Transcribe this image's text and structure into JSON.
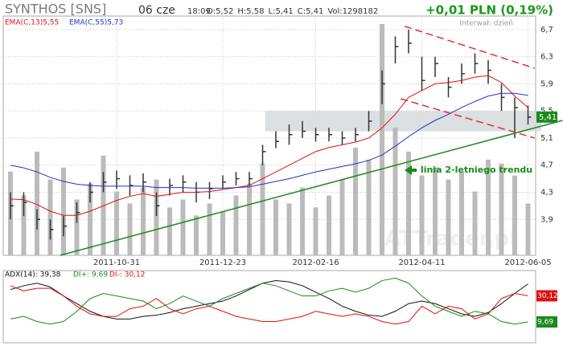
{
  "chart_data": [
    {
      "type": "ohlc",
      "title": "SYNTHOS [SNS]",
      "date": "06 cze",
      "time": "18:09",
      "quote": [
        "O:5,52",
        "H:5,58",
        "L:5,41",
        "C:5,41",
        "Vol:1298182"
      ],
      "change": "+0,01 PLN (0,19%)",
      "interval": "Interwał: dzień",
      "watermark": "ATTrader.pl",
      "categories": [
        null,
        null,
        null,
        null,
        null,
        null,
        null,
        null,
        "2011-10-31",
        null,
        null,
        null,
        null,
        null,
        null,
        null,
        "2011-12-23",
        null,
        null,
        null,
        null,
        null,
        null,
        "2012-02-16",
        null,
        null,
        null,
        null,
        null,
        null,
        null,
        "2012-04-11",
        null,
        null,
        null,
        null,
        null,
        null,
        null,
        "2012-06-05"
      ],
      "high": [
        4.3,
        4.3,
        4.05,
        3.9,
        3.95,
        4.15,
        4.45,
        4.6,
        4.62,
        4.55,
        4.58,
        4.3,
        4.5,
        4.55,
        4.45,
        4.45,
        4.55,
        4.6,
        4.6,
        5.0,
        5.2,
        5.3,
        5.35,
        5.25,
        5.25,
        5.2,
        5.25,
        5.5,
        6.1,
        6.6,
        6.7,
        6.3,
        6.3,
        6.0,
        6.2,
        6.35,
        6.25,
        5.9,
        5.7,
        5.58
      ],
      "low": [
        3.9,
        3.95,
        3.75,
        3.6,
        3.65,
        3.85,
        4.15,
        4.3,
        4.35,
        4.25,
        4.3,
        3.95,
        4.25,
        4.3,
        4.15,
        4.2,
        4.35,
        4.4,
        4.4,
        4.7,
        4.95,
        5.0,
        5.1,
        5.05,
        5.05,
        5.0,
        5.05,
        5.2,
        5.6,
        6.2,
        6.35,
        5.8,
        6.0,
        5.7,
        5.9,
        6.05,
        5.9,
        5.5,
        5.1,
        5.3
      ],
      "close": [
        4.1,
        4.15,
        3.9,
        3.75,
        3.8,
        4.0,
        4.3,
        4.45,
        4.5,
        4.4,
        4.45,
        4.1,
        4.4,
        4.45,
        4.3,
        4.35,
        4.45,
        4.5,
        4.5,
        4.9,
        5.05,
        5.15,
        5.2,
        5.15,
        5.15,
        5.1,
        5.15,
        5.35,
        5.9,
        6.45,
        6.5,
        5.95,
        6.2,
        5.85,
        6.05,
        6.2,
        6.1,
        5.7,
        5.55,
        5.41
      ],
      "bar_color": "#333333",
      "series": [
        {
          "name": "EMA(C,13)5,55",
          "color": "#e01010",
          "values": [
            4.2,
            4.19,
            4.12,
            4.02,
            3.96,
            3.96,
            4.02,
            4.1,
            4.18,
            4.24,
            4.28,
            4.24,
            4.27,
            4.3,
            4.3,
            4.31,
            4.34,
            4.37,
            4.4,
            4.5,
            4.6,
            4.7,
            4.8,
            4.9,
            4.96,
            5.0,
            5.04,
            5.1,
            5.25,
            5.45,
            5.7,
            5.8,
            5.9,
            5.92,
            5.95,
            6.0,
            6.02,
            5.92,
            5.72,
            5.55
          ]
        },
        {
          "name": "EMA(C,55)5,73",
          "color": "#2233cc",
          "values": [
            4.7,
            4.66,
            4.6,
            4.52,
            4.46,
            4.42,
            4.4,
            4.39,
            4.39,
            4.39,
            4.39,
            4.37,
            4.37,
            4.37,
            4.36,
            4.36,
            4.36,
            4.37,
            4.38,
            4.42,
            4.46,
            4.5,
            4.55,
            4.6,
            4.64,
            4.68,
            4.72,
            4.77,
            4.85,
            4.98,
            5.12,
            5.25,
            5.36,
            5.45,
            5.55,
            5.64,
            5.72,
            5.76,
            5.76,
            5.73
          ]
        }
      ],
      "volume": [
        2100000,
        1500000,
        2600000,
        1900000,
        2200000,
        1400000,
        1800000,
        2500000,
        1600000,
        1300000,
        1700000,
        1900000,
        1200000,
        1400000,
        1000000,
        1300000,
        1100000,
        1500000,
        1800000,
        2300000,
        1400000,
        1300000,
        1700000,
        1200000,
        1500000,
        1900000,
        2700000,
        2400000,
        5800000,
        3200000,
        2600000,
        2000000,
        2200000,
        1900000,
        2100000,
        1600000,
        2400000,
        2300000,
        2000000,
        1298182
      ],
      "volume_color": "#bbbbbb",
      "volume_ylim": [
        0,
        6000000
      ],
      "ylim": [
        3.37,
        6.9
      ],
      "yticks": [
        {
          "value": 3.9,
          "label": "3,9"
        },
        {
          "value": 4.3,
          "label": "4,3"
        },
        {
          "value": 4.7,
          "label": "4,7"
        },
        {
          "value": 5.1,
          "label": "5,1"
        },
        {
          "value": 5.5,
          "label": "5,5"
        },
        {
          "value": 5.9,
          "label": "5,9"
        },
        {
          "value": 6.3,
          "label": "6,3"
        },
        {
          "value": 6.7,
          "label": "6,7"
        }
      ],
      "grid": true,
      "last_price": {
        "value": 5.41,
        "label": "5,41"
      },
      "last_price_color": "#1a8a1a",
      "trend_line": {
        "x": [
          3.76,
          41.6
        ],
        "y": [
          3.37,
          5.36
        ],
        "color": "#1a8a1a",
        "label": "linia 2-letniego trendu"
      },
      "channel": [
        {
          "x": [
            29.7,
            39.5
          ],
          "y": [
            6.75,
            6.13
          ]
        },
        {
          "x": [
            29.4,
            39.5
          ],
          "y": [
            5.68,
            5.1
          ]
        }
      ],
      "channel_color": "#e03030",
      "zone": {
        "x": [
          19.2,
          40
        ],
        "y": [
          5.5,
          5.2
        ],
        "color": "#d5d9dc"
      }
    },
    {
      "type": "line",
      "series": [
        {
          "name": "ADX(14): 39,38",
          "color": "#111111",
          "values": [
            35,
            38,
            40,
            37,
            30,
            24,
            18,
            14,
            12,
            12,
            14,
            15,
            17,
            20,
            22,
            24,
            26,
            30,
            35,
            40,
            42,
            41,
            38,
            33,
            28,
            22,
            18,
            15,
            14,
            18,
            24,
            26,
            24,
            20,
            16,
            14,
            17,
            24,
            32,
            39.38
          ]
        },
        {
          "name": "DI+: 9,69",
          "color": "#1a8a1a",
          "values": [
            12,
            14,
            10,
            8,
            10,
            18,
            28,
            32,
            30,
            28,
            26,
            20,
            24,
            30,
            26,
            22,
            28,
            32,
            36,
            40,
            38,
            34,
            30,
            30,
            34,
            36,
            33,
            36,
            42,
            44,
            40,
            30,
            22,
            18,
            14,
            18,
            16,
            10,
            8,
            9.69
          ],
          "end_label": {
            "value": 9.69,
            "label": "9,69"
          }
        },
        {
          "name": "DI-: 30,12",
          "color": "#e01010",
          "values": [
            38,
            34,
            36,
            36,
            30,
            22,
            16,
            14,
            14,
            20,
            22,
            28,
            20,
            16,
            20,
            22,
            18,
            14,
            12,
            10,
            10,
            12,
            14,
            18,
            16,
            14,
            16,
            14,
            10,
            8,
            10,
            22,
            16,
            22,
            20,
            12,
            16,
            28,
            32,
            30.12
          ],
          "end_label": {
            "value": 30.12,
            "label": "30,12"
          }
        }
      ],
      "ylim": [
        -6,
        48
      ]
    }
  ]
}
